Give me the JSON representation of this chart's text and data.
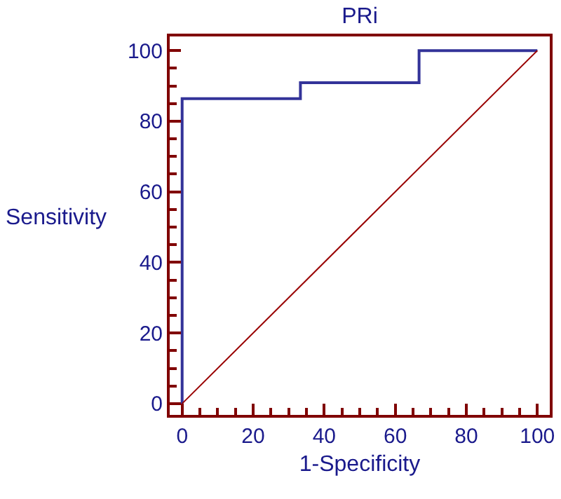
{
  "chart_data": {
    "type": "step",
    "title": "PRi",
    "xlabel": "1-Specificity",
    "ylabel": "Sensitivity",
    "xlim": [
      -3.5,
      103.5
    ],
    "ylim": [
      -3.2,
      104
    ],
    "xticks": [
      0,
      20,
      40,
      60,
      80,
      100
    ],
    "yticks": [
      0,
      20,
      40,
      60,
      80,
      100
    ],
    "grid": false,
    "series": [
      {
        "color": "#333399",
        "x": [
          0,
          0,
          33.3,
          33.3,
          66.7,
          66.7,
          100
        ],
        "values": [
          0,
          86.4,
          86.4,
          90.9,
          90.9,
          100,
          100
        ]
      },
      {
        "type": "line",
        "color": "#990000",
        "x": [
          0,
          100
        ],
        "values": [
          0,
          100
        ]
      }
    ]
  }
}
